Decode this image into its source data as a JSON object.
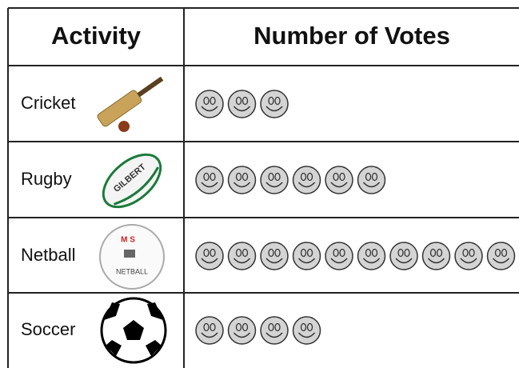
{
  "chart_data": {
    "type": "pictograph",
    "columns": [
      "Activity",
      "Number of Votes"
    ],
    "categories": [
      "Cricket",
      "Rugby",
      "Netball",
      "Soccer"
    ],
    "values": [
      3,
      6,
      10,
      4
    ]
  }
}
